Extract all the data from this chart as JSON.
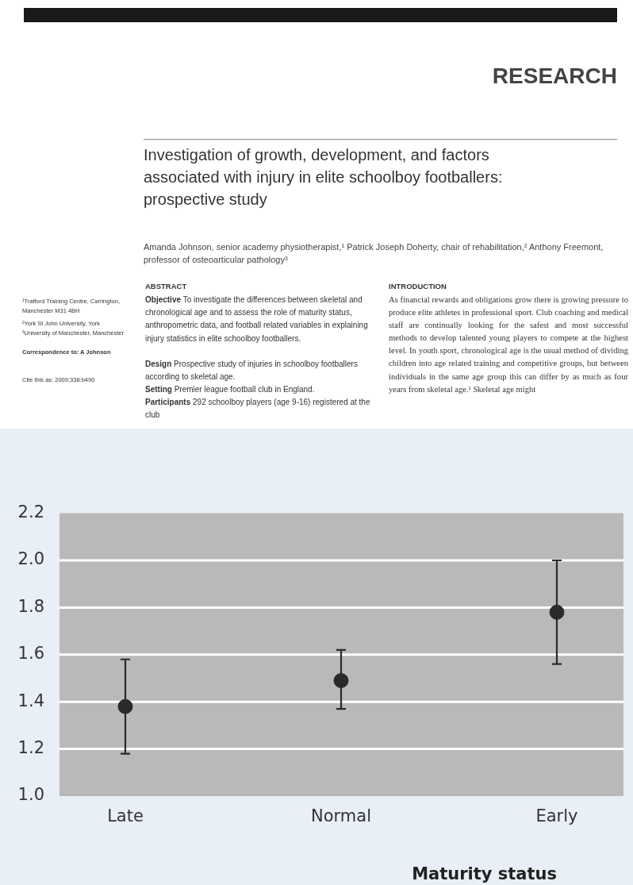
{
  "chart_data": {
    "type": "scatter",
    "title": "Investigation of growth, development, and factors associated with injury in elite schoolboy footballers: prospective study",
    "subtitle": "Amanda Johnson, senior academy physiotherapist,¹ Patrick Joseph Doherty, chair of rehabilitation,² Anthony Freemont, professor of osteoarticular pathology³",
    "annotations": [
      "RESEARCH",
      "¹Trafford Training Centre, Carrington, Manchester M31 4BH",
      "²York St John University, York",
      "³University of Manchester, Manchester",
      "Correspondence to: A Johnson",
      "Cite this as: 2009;338:b490",
      "ABSTRACT",
      "Objective To investigate the differences between skeletal and chronological age and to assess the role of maturity status, anthropometric data, and football related variables in explaining injury statistics in elite schoolboy footballers.",
      "Design Prospective study of injuries in schoolboy footballers according to skeletal age.",
      "Setting Premier league football club in England.",
      "Participants 292 schoolboy players (age 9-16) registered at the club",
      "INTRODUCTION",
      "As financial rewards and obligations grow there is growing pressure to produce elite athletes in professional sport. Club coaching and medical staff are continually looking for the safest and most successful methods to develop talented young players to compete at the highest level. In youth sport, chronological age is the usual method of dividing children into age related training and competitive groups, but between individuals in the same age group this can differ by as much as four years from skeletal age.¹ Skeletal age might"
    ],
    "xlabel": "Maturity status",
    "categories": [
      "Late",
      "Normal",
      "Early"
    ],
    "values": [
      1.38,
      1.49,
      1.78
    ],
    "errors": [
      [
        1.18,
        1.58
      ],
      [
        1.37,
        1.62
      ],
      [
        1.56,
        2.0
      ]
    ],
    "color": "#2a2a2a",
    "marker": "circle",
    "ylim": [
      1.0,
      2.2
    ],
    "yticks": [
      {
        "value": 1.0,
        "label": "1.0"
      },
      1.2,
      1.4,
      1.6,
      1.8,
      {
        "value": 2.0,
        "label": "2.0"
      },
      2.2
    ],
    "grid": "y",
    "legend": false
  }
}
